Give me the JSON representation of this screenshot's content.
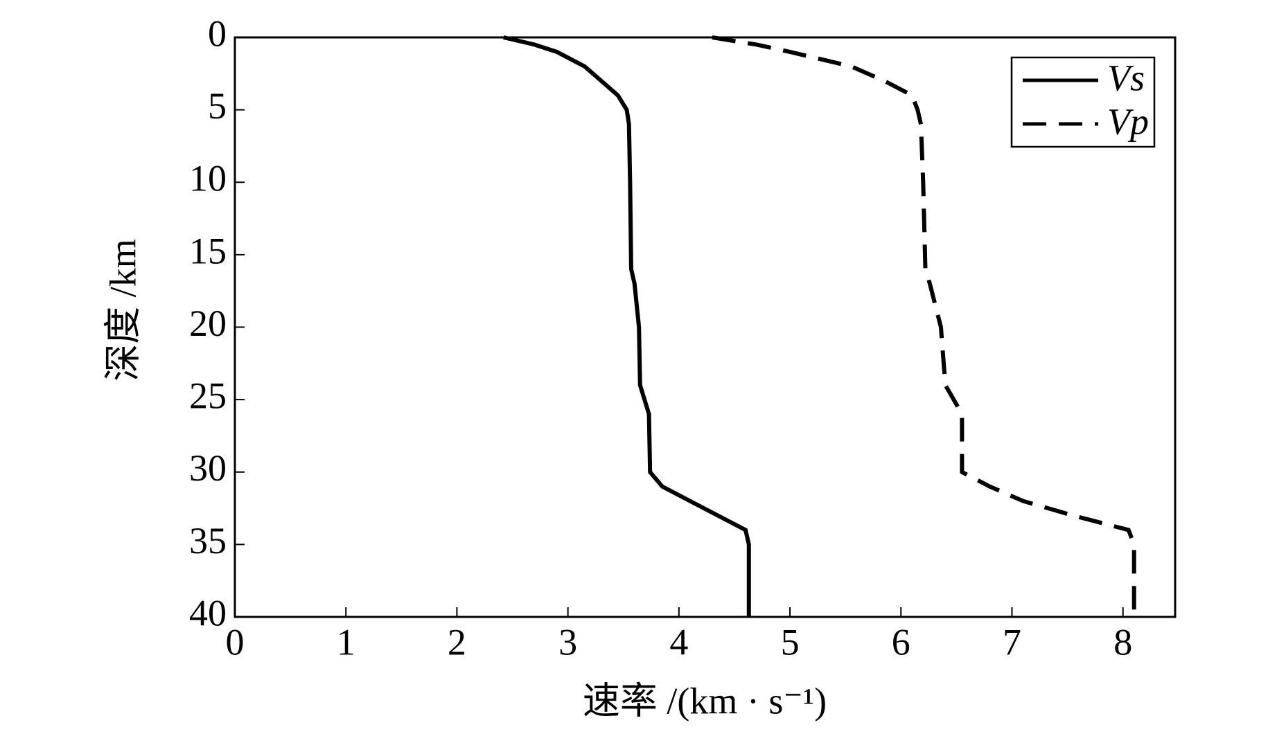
{
  "chart_data": {
    "type": "line",
    "xlabel": "速率 /(km · s⁻¹)",
    "ylabel": "深度 /km",
    "y": [
      0,
      0.5,
      1,
      2,
      3,
      4,
      5,
      6,
      10,
      16,
      17,
      20,
      24,
      26,
      30,
      31,
      32,
      33,
      34,
      35,
      40
    ],
    "series": [
      {
        "name": "Vs",
        "color": "#000000",
        "line_style": "solid",
        "values": [
          2.42,
          2.7,
          2.9,
          3.15,
          3.3,
          3.45,
          3.53,
          3.55,
          3.56,
          3.57,
          3.6,
          3.64,
          3.65,
          3.73,
          3.74,
          3.85,
          4.1,
          4.35,
          4.6,
          4.63,
          4.63
        ]
      },
      {
        "name": "Vp",
        "color": "#000000",
        "line_style": "dashed",
        "values": [
          4.3,
          4.7,
          5.0,
          5.55,
          5.85,
          6.1,
          6.15,
          6.18,
          6.2,
          6.22,
          6.26,
          6.36,
          6.4,
          6.55,
          6.55,
          6.8,
          7.1,
          7.55,
          8.05,
          8.1,
          8.1
        ]
      }
    ],
    "xlim": [
      0,
      8.47
    ],
    "xticks": [
      0,
      1,
      2,
      3,
      4,
      5,
      6,
      7,
      8
    ],
    "ylim": [
      40,
      0
    ],
    "yticks": [
      0,
      5,
      10,
      15,
      20,
      25,
      30,
      35,
      40
    ],
    "legend": "upper right"
  }
}
